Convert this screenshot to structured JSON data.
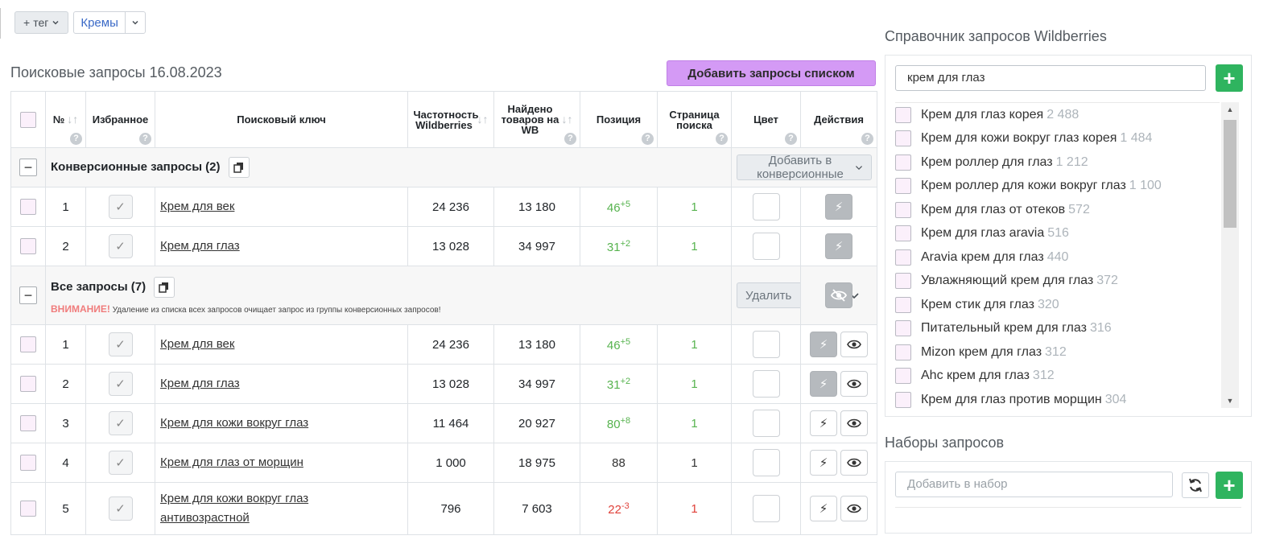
{
  "tags": {
    "add_tag_label": "тег",
    "active_tag": "Кремы"
  },
  "page_title": "Поисковые запросы 16.08.2023",
  "add_list_button": "Добавить запросы списком",
  "table": {
    "headers": {
      "num": "№",
      "favorite": "Избранное",
      "key": "Поисковый ключ",
      "frequency": "Частотность Wildberries",
      "found": "Найдено товаров на WB",
      "position": "Позиция",
      "page": "Страница поиска",
      "color": "Цвет",
      "actions": "Действия"
    },
    "help_mark": "?",
    "conversion_group": {
      "title": "Конверсионные запросы (2)",
      "select_value": "Добавить в конверсионные",
      "rows": [
        {
          "num": "1",
          "key": "Крем для век",
          "frequency": "24 236",
          "found": "13 180",
          "position": "46",
          "delta": "+5",
          "page": "1"
        },
        {
          "num": "2",
          "key": "Крем для глаз",
          "frequency": "13 028",
          "found": "34 997",
          "position": "31",
          "delta": "+2",
          "page": "1"
        }
      ]
    },
    "all_group": {
      "title": "Все запросы (7)",
      "warning_label": "ВНИМАНИЕ!",
      "warning_text": "Удаление из списка всех запросов очищает запрос из группы конверсионных запросов!",
      "select_value": "Удалить",
      "rows": [
        {
          "num": "1",
          "key": "Крем для век",
          "frequency": "24 236",
          "found": "13 180",
          "position": "46",
          "delta": "+5",
          "page": "1"
        },
        {
          "num": "2",
          "key": "Крем для глаз",
          "frequency": "13 028",
          "found": "34 997",
          "position": "31",
          "delta": "+2",
          "page": "1"
        },
        {
          "num": "3",
          "key": "Крем для кожи вокруг глаз",
          "frequency": "11 464",
          "found": "20 927",
          "position": "80",
          "delta": "+8",
          "page": "1"
        },
        {
          "num": "4",
          "key": "Крем для глаз от морщин",
          "frequency": "1 000",
          "found": "18 975",
          "position": "88",
          "delta": "",
          "page": "1"
        },
        {
          "num": "5",
          "key": "Крем для кожи вокруг глаз антивозрастной",
          "frequency": "796",
          "found": "7 603",
          "position": "22",
          "delta": "-3",
          "page": "1"
        }
      ]
    }
  },
  "reference": {
    "title": "Справочник запросов Wildberries",
    "search_value": "крем для глаз",
    "items": [
      {
        "label": "Крем для глаз корея",
        "count": "2 488"
      },
      {
        "label": "Крем для кожи вокруг глаз корея",
        "count": "1 484"
      },
      {
        "label": "Крем роллер для глаз",
        "count": "1 212"
      },
      {
        "label": "Крем роллер для кожи вокруг глаз",
        "count": "1 100"
      },
      {
        "label": "Крем для глаз от отеков",
        "count": "572"
      },
      {
        "label": "Крем для глаз aravia",
        "count": "516"
      },
      {
        "label": "Aravia крем для глаз",
        "count": "440"
      },
      {
        "label": "Увлажняющий крем для глаз",
        "count": "372"
      },
      {
        "label": "Крем стик для глаз",
        "count": "320"
      },
      {
        "label": "Питательный крем для глаз",
        "count": "316"
      },
      {
        "label": "Mizon крем для глаз",
        "count": "312"
      },
      {
        "label": "Ahc крем для глаз",
        "count": "312"
      },
      {
        "label": "Крем для глаз против морщин",
        "count": "304"
      }
    ]
  },
  "sets": {
    "title": "Наборы запросов",
    "input_placeholder": "Добавить в набор"
  },
  "colors": {
    "accent_purple": "#d49af5",
    "green": "#2fb45f",
    "positive": "#57b34f",
    "negative": "#e0413a"
  }
}
